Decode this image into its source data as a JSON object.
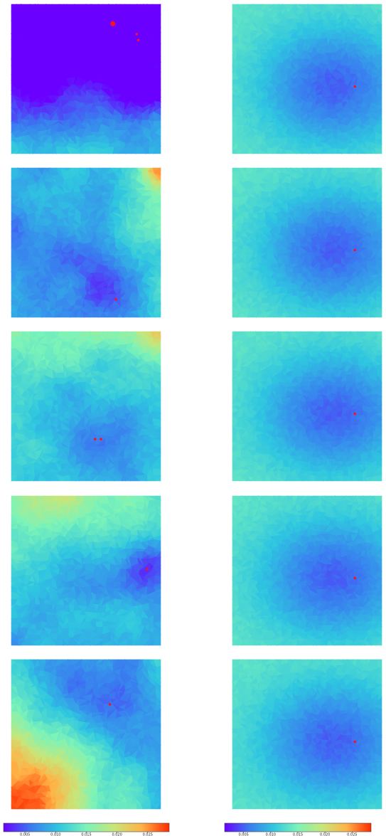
{
  "chart_data": {
    "type": "heatmap",
    "title": "",
    "layout": "grid",
    "rows": 5,
    "cols": 2,
    "colormap": "rainbow",
    "colormap_stops": [
      "#6a00ff",
      "#3a7bf0",
      "#2fc6e0",
      "#7cf3b8",
      "#c7e67a",
      "#ffb347",
      "#ff2a00"
    ],
    "marker_color": "#ff1020",
    "panels": [
      {
        "row": 0,
        "col": 0,
        "style": "left",
        "bg": 0.003,
        "patterns": [
          {
            "x": 0.55,
            "y": 0.2,
            "s": 0.35,
            "a": 0.6
          },
          {
            "x": 0.18,
            "y": 0.55,
            "s": 0.3,
            "a": 0.4
          },
          {
            "x": 0.85,
            "y": 0.55,
            "s": 0.25,
            "a": 0.4
          }
        ],
        "gradient": {
          "dx": 0.0,
          "dy": 0.008,
          "dc": 0.0
        },
        "corners": [],
        "markers": [
          {
            "x": 0.68,
            "y": 0.13,
            "r": 3.5
          },
          {
            "x": 0.84,
            "y": 0.2,
            "r": 1.8
          },
          {
            "x": 0.85,
            "y": 0.24,
            "r": 1.8
          }
        ]
      },
      {
        "row": 0,
        "col": 1,
        "style": "right",
        "bg": 0.01,
        "center": {
          "x": 0.68,
          "y": 0.55,
          "depth": 0.0085
        },
        "markers": [
          {
            "x": 0.82,
            "y": 0.55,
            "r": 1.8
          }
        ]
      },
      {
        "row": 1,
        "col": 0,
        "style": "left",
        "bg": 0.011,
        "patterns": [
          {
            "x": 0.63,
            "y": 0.82,
            "s": 0.38,
            "a": 0.7
          },
          {
            "x": 0.3,
            "y": 0.45,
            "s": 0.3,
            "a": 0.3
          },
          {
            "x": 0.6,
            "y": 0.2,
            "s": 0.25,
            "a": 0.2
          }
        ],
        "gradient": {
          "dx": 0.003,
          "dy": 0.0,
          "dc": 0.0
        },
        "corners": [
          {
            "x": 1.0,
            "y": 0.0,
            "v": 0.023,
            "s": 0.12
          }
        ],
        "markers": [
          {
            "x": 0.7,
            "y": 0.88,
            "r": 1.8
          }
        ]
      },
      {
        "row": 1,
        "col": 1,
        "style": "right",
        "bg": 0.01,
        "center": {
          "x": 0.68,
          "y": 0.55,
          "depth": 0.0085
        },
        "markers": [
          {
            "x": 0.82,
            "y": 0.55,
            "r": 1.8
          }
        ]
      },
      {
        "row": 2,
        "col": 0,
        "style": "left",
        "bg": 0.013,
        "patterns": [
          {
            "x": 0.56,
            "y": 0.73,
            "s": 0.35,
            "a": 0.8
          },
          {
            "x": 0.3,
            "y": 0.35,
            "s": 0.3,
            "a": 0.2
          },
          {
            "x": 0.8,
            "y": 0.45,
            "s": 0.3,
            "a": 0.2
          }
        ],
        "gradient": {
          "dx": 0.0,
          "dy": -0.002,
          "dc": 0.0
        },
        "corners": [
          {
            "x": 1.0,
            "y": 0.0,
            "v": 0.02,
            "s": 0.15
          }
        ],
        "markers": [
          {
            "x": 0.56,
            "y": 0.72,
            "r": 1.8
          },
          {
            "x": 0.6,
            "y": 0.72,
            "r": 1.8
          }
        ]
      },
      {
        "row": 2,
        "col": 1,
        "style": "right",
        "bg": 0.01,
        "center": {
          "x": 0.68,
          "y": 0.55,
          "depth": 0.0085
        },
        "markers": [
          {
            "x": 0.82,
            "y": 0.55,
            "r": 1.8
          }
        ]
      },
      {
        "row": 3,
        "col": 0,
        "style": "left",
        "bg": 0.012,
        "patterns": [
          {
            "x": 0.92,
            "y": 0.5,
            "s": 0.25,
            "a": 0.9
          },
          {
            "x": 0.5,
            "y": 0.55,
            "s": 0.4,
            "a": 0.3
          }
        ],
        "gradient": {
          "dx": 0.0,
          "dy": -0.003,
          "dc": 0.0
        },
        "corners": [
          {
            "x": 0.2,
            "y": 0.0,
            "v": 0.016,
            "s": 0.3
          }
        ],
        "markers": [
          {
            "x": 0.91,
            "y": 0.49,
            "r": 1.8
          }
        ]
      },
      {
        "row": 3,
        "col": 1,
        "style": "right",
        "bg": 0.01,
        "center": {
          "x": 0.68,
          "y": 0.55,
          "depth": 0.0085
        },
        "markers": [
          {
            "x": 0.82,
            "y": 0.55,
            "r": 1.8
          }
        ]
      },
      {
        "row": 4,
        "col": 0,
        "style": "left",
        "bg": 0.01,
        "patterns": [
          {
            "x": 0.65,
            "y": 0.3,
            "s": 0.35,
            "a": 0.7
          },
          {
            "x": 0.35,
            "y": 0.15,
            "s": 0.25,
            "a": 0.3
          }
        ],
        "gradient": {
          "dx": 0.0,
          "dy": 0.0,
          "dc": 0.0
        },
        "corners": [
          {
            "x": 0.0,
            "y": 1.0,
            "v": 0.028,
            "s": 0.55
          }
        ],
        "markers": [
          {
            "x": 0.66,
            "y": 0.3,
            "r": 1.8
          }
        ]
      },
      {
        "row": 4,
        "col": 1,
        "style": "right",
        "bg": 0.01,
        "center": {
          "x": 0.68,
          "y": 0.55,
          "depth": 0.0085
        },
        "markers": [
          {
            "x": 0.82,
            "y": 0.55,
            "r": 1.8
          }
        ]
      }
    ],
    "colorbars": [
      {
        "vmin": 0.0015,
        "vmax": 0.0285,
        "ticks": [
          0.005,
          0.01,
          0.015,
          0.02,
          0.025
        ],
        "tick_labels": [
          "0.005",
          "0.010",
          "0.015",
          "0.020",
          "0.025"
        ]
      },
      {
        "vmin": 0.0015,
        "vmax": 0.0285,
        "ticks": [
          0.005,
          0.01,
          0.015,
          0.02,
          0.025
        ],
        "tick_labels": [
          "0.005",
          "0.010",
          "0.015",
          "0.020",
          "0.025"
        ]
      }
    ]
  }
}
